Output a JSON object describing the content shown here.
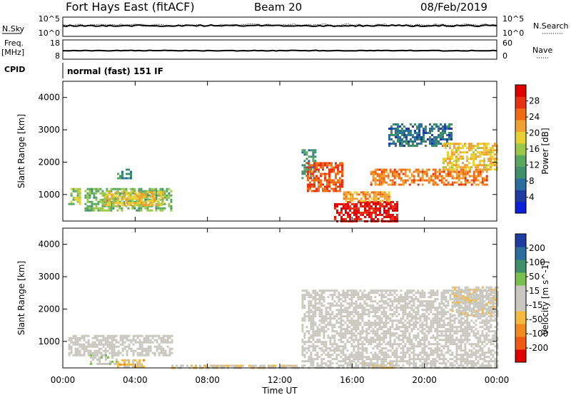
{
  "header": {
    "station": "Fort Hays East (fitACF)",
    "beam": "Beam 20",
    "date": "08/Feb/2019"
  },
  "noise_panel": {
    "left_label": "N.Sky",
    "right_label": "N.Search",
    "left_ticks": [
      "10^5",
      "10^0"
    ],
    "right_ticks": [
      "10^5",
      "10^0"
    ]
  },
  "freq_panel": {
    "left_label_line1": "Freq.",
    "left_label_line2": "[MHz]",
    "left_ticks": [
      "18",
      "8"
    ],
    "right_label": "Nave",
    "right_ticks": [
      "60",
      "0"
    ]
  },
  "cpid_panel": {
    "label": "CPID",
    "text": "normal (fast) 151 IF"
  },
  "x_axis": {
    "label": "Time UT",
    "ticks": [
      "00:00",
      "04:00",
      "08:00",
      "12:00",
      "16:00",
      "20:00",
      "00:00"
    ]
  },
  "colors": {
    "power_scale": [
      "#0a1edc",
      "#1e3ca0",
      "#2a6ea0",
      "#3f8f6a",
      "#58a860",
      "#9cc84a",
      "#e8d030",
      "#f0a030",
      "#ef6a10",
      "#e83010",
      "#e00000"
    ],
    "velocity_scale": [
      "#e00000",
      "#ef5a10",
      "#f08a20",
      "#f5b840",
      "#c8c8c0",
      "#c8c8c0",
      "#7ac050",
      "#3f8f6a",
      "#2a6ea0",
      "#1e3ca0"
    ]
  },
  "chart_data": [
    {
      "type": "heatmap",
      "title": "Power",
      "xlabel": "Time UT",
      "ylabel": "Slant Range [km]",
      "x_range_hours": [
        0,
        24
      ],
      "ylim": [
        180,
        4500
      ],
      "y_ticks": [
        "4000",
        "3000",
        "2000",
        "1000"
      ],
      "colorbar": {
        "label": "Power [dB]",
        "ticks": [
          "28",
          "24",
          "20",
          "16",
          "12",
          "8",
          "4"
        ],
        "range": [
          0,
          32
        ]
      },
      "regions": [
        {
          "t": [
            0.3,
            1.0
          ],
          "r": [
            700,
            1200
          ],
          "v": 16
        },
        {
          "t": [
            1.2,
            6.0
          ],
          "r": [
            500,
            1200
          ],
          "v": 14
        },
        {
          "t": [
            2.3,
            5.5
          ],
          "r": [
            700,
            1100
          ],
          "v": 20
        },
        {
          "t": [
            3.0,
            3.8
          ],
          "r": [
            1500,
            1800
          ],
          "v": 10
        },
        {
          "t": [
            13.2,
            14.0
          ],
          "r": [
            1500,
            2400
          ],
          "v": 10
        },
        {
          "t": [
            13.5,
            15.5
          ],
          "r": [
            1100,
            2000
          ],
          "v": 26
        },
        {
          "t": [
            15.0,
            18.5
          ],
          "r": [
            200,
            800
          ],
          "v": 30
        },
        {
          "t": [
            15.5,
            18.0
          ],
          "r": [
            800,
            1100
          ],
          "v": 22
        },
        {
          "t": [
            17.0,
            23.5
          ],
          "r": [
            1300,
            1800
          ],
          "v": 24
        },
        {
          "t": [
            18.0,
            21.5
          ],
          "r": [
            2500,
            3200
          ],
          "v": 8
        },
        {
          "t": [
            21.0,
            24.0
          ],
          "r": [
            1800,
            2600
          ],
          "v": 20
        }
      ]
    },
    {
      "type": "heatmap",
      "title": "Velocity",
      "xlabel": "Time UT",
      "ylabel": "Slant Range [km]",
      "x_range_hours": [
        0,
        24
      ],
      "ylim": [
        180,
        4500
      ],
      "y_ticks": [
        "4000",
        "3000",
        "2000",
        "1000"
      ],
      "colorbar": {
        "label": "Velocity [m s^-1]",
        "ticks": [
          "200",
          "100",
          "50",
          "15",
          "-15",
          "-50",
          "-100",
          "-200"
        ],
        "range": [
          -250,
          250
        ]
      },
      "regions": [
        {
          "t": [
            0.3,
            6.0
          ],
          "r": [
            600,
            1200
          ],
          "v": 0
        },
        {
          "t": [
            1.5,
            3.0
          ],
          "r": [
            300,
            600
          ],
          "v": 40
        },
        {
          "t": [
            3.0,
            4.5
          ],
          "r": [
            250,
            450
          ],
          "v": -60
        },
        {
          "t": [
            6.0,
            13.0
          ],
          "r": [
            180,
            280
          ],
          "v": -40
        },
        {
          "t": [
            13.2,
            24.0
          ],
          "r": [
            200,
            2600
          ],
          "v": 0
        },
        {
          "t": [
            16.5,
            18.5
          ],
          "r": [
            180,
            350
          ],
          "v": -30
        },
        {
          "t": [
            21.5,
            24.0
          ],
          "r": [
            1800,
            2700
          ],
          "v": -25
        }
      ]
    }
  ]
}
